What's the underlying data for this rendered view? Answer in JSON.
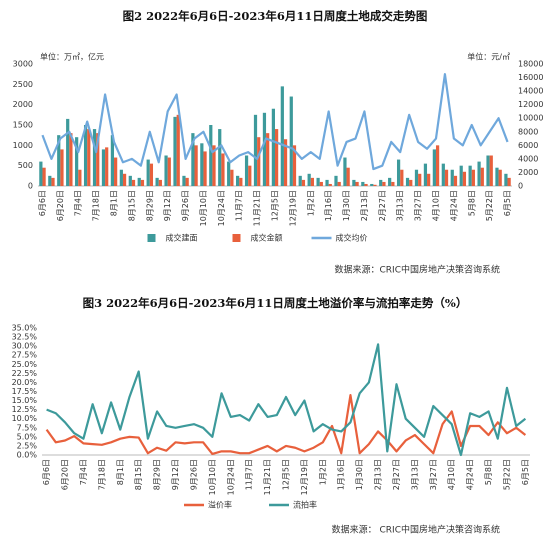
{
  "chart_data": [
    {
      "type": "combo",
      "title": "图2  2022年6月6日-2023年6月11日周度土地成交走势图",
      "y_label": "单位：万㎡，亿元",
      "y2_label": "单位：元/㎡",
      "source": "数据来源：CRIC中国房地产决策咨询系统",
      "categories": [
        "6月6日",
        null,
        "6月20日",
        null,
        "7月4日",
        null,
        "7月18日",
        null,
        "8月1日",
        null,
        "8月15日",
        null,
        "8月29日",
        null,
        "9月12日",
        null,
        "9月26日",
        null,
        "10月10日",
        null,
        "10月24日",
        null,
        "11月7日",
        null,
        "11月21日",
        null,
        "12月5日",
        null,
        "12月19日",
        null,
        "1月2日",
        null,
        "1月16日",
        null,
        "1月30日",
        null,
        "2月13日",
        null,
        "2月27日",
        null,
        "3月13日",
        null,
        "3月27日",
        null,
        "4月10日",
        null,
        "4月24日",
        null,
        "5月8日",
        null,
        "5月22日",
        null,
        "6月5日"
      ],
      "ylim": [
        0,
        3000
      ],
      "yticks": [
        0,
        500,
        1000,
        1500,
        2000,
        2500,
        3000
      ],
      "y2lim": [
        0,
        18000
      ],
      "y2ticks": [
        0,
        2000,
        4000,
        6000,
        8000,
        10000,
        12000,
        14000,
        16000,
        18000
      ],
      "grid": false,
      "series": [
        {
          "name": "成交建面",
          "type": "bar",
          "color": "#3d9a9b",
          "values": [
            600,
            250,
            1250,
            1650,
            1200,
            1500,
            1400,
            900,
            1250,
            400,
            250,
            200,
            650,
            200,
            750,
            1700,
            250,
            1300,
            1050,
            1500,
            1400,
            600,
            250,
            750,
            1750,
            1800,
            1900,
            2450,
            2200,
            250,
            300,
            200,
            150,
            250,
            700,
            150,
            100,
            50,
            150,
            200,
            650,
            200,
            400,
            550,
            900,
            550,
            400,
            500,
            500,
            600,
            750,
            450,
            300
          ]
        },
        {
          "name": "成交金额",
          "type": "bar",
          "color": "#e8603c",
          "values": [
            450,
            200,
            900,
            1300,
            400,
            1400,
            1300,
            950,
            700,
            300,
            150,
            150,
            550,
            150,
            700,
            1750,
            200,
            1000,
            850,
            1000,
            800,
            400,
            200,
            500,
            1200,
            1300,
            1400,
            1150,
            1000,
            150,
            200,
            100,
            50,
            100,
            450,
            100,
            50,
            30,
            100,
            100,
            400,
            150,
            300,
            300,
            1000,
            400,
            250,
            350,
            400,
            450,
            750,
            400,
            200
          ]
        },
        {
          "name": "成交均价",
          "type": "line",
          "axis": "y2",
          "color": "#6fa8dc",
          "values": [
            7500,
            4000,
            7000,
            8000,
            5000,
            9500,
            5000,
            13500,
            6500,
            3500,
            4000,
            3000,
            8000,
            3500,
            11000,
            13500,
            4000,
            7000,
            8000,
            5000,
            6000,
            3500,
            4500,
            5000,
            4000,
            7000,
            6500,
            6000,
            5500,
            4000,
            5000,
            4000,
            11000,
            3000,
            6500,
            7000,
            11000,
            2500,
            3000,
            6500,
            5000,
            10500,
            6500,
            5500,
            7000,
            16500,
            7000,
            6000,
            9000,
            6000,
            8000,
            10000,
            6500
          ]
        }
      ]
    },
    {
      "type": "line",
      "title": "图3  2022年6月6日-2023年6月11日周度土地溢价率与流拍率走势（%）",
      "source": "数据来源：  CRIC中国房地产决策咨询系统",
      "categories": [
        "6月6日",
        null,
        "6月20日",
        null,
        "7月4日",
        null,
        "7月18日",
        null,
        "8月1日",
        null,
        "8月15日",
        null,
        "8月29日",
        null,
        "9月12日",
        null,
        "9月26日",
        null,
        "10月10日",
        null,
        "10月24日",
        null,
        "11月7日",
        null,
        "11月21日",
        null,
        "12月5日",
        null,
        "12月19日",
        null,
        "1月2日",
        null,
        "1月16日",
        null,
        "1月30日",
        null,
        "2月13日",
        null,
        "2月27日",
        null,
        "3月13日",
        null,
        "3月27日",
        null,
        "4月10日",
        null,
        "4月24日",
        null,
        "5月8日",
        null,
        "5月22日",
        null,
        "6月5日"
      ],
      "ylim": [
        0,
        35
      ],
      "yticks": [
        {
          "value": 0,
          "label": "0.0%"
        },
        {
          "value": 2.5,
          "label": "2.5%"
        },
        {
          "value": 5,
          "label": "5.0%"
        },
        {
          "value": 7.5,
          "label": "7.5%"
        },
        {
          "value": 10,
          "label": "10.0%"
        },
        {
          "value": 12.5,
          "label": "12.5%"
        },
        {
          "value": 15,
          "label": "15.0%"
        },
        {
          "value": 17.5,
          "label": "17.5%"
        },
        {
          "value": 20,
          "label": "20.0%"
        },
        {
          "value": 22.5,
          "label": "22.5%"
        },
        {
          "value": 25,
          "label": "25.0%"
        },
        {
          "value": 27.5,
          "label": "27.5%"
        },
        {
          "value": 30,
          "label": "30.0%"
        },
        {
          "value": 32.5,
          "label": "32.5%"
        },
        {
          "value": 35,
          "label": "35.0%"
        }
      ],
      "grid": false,
      "series": [
        {
          "name": "溢价率",
          "type": "line",
          "color": "#e8603c",
          "values": [
            7,
            3.5,
            4,
            5.2,
            3.2,
            3,
            2.8,
            3.5,
            4.5,
            5,
            4.8,
            0.5,
            2,
            1.2,
            3.5,
            3.2,
            3.5,
            3.5,
            0.3,
            1,
            1,
            0.5,
            0.5,
            1.5,
            2.5,
            1,
            2.5,
            2,
            1,
            2,
            3.5,
            8,
            0.5,
            16.5,
            0.5,
            3,
            6.5,
            4,
            1,
            4,
            5.5,
            3,
            0.5,
            8.5,
            12,
            2.5,
            8,
            8,
            5.5,
            9,
            6,
            7.5,
            5.5
          ]
        },
        {
          "name": "流拍率",
          "type": "line",
          "color": "#3d9a9b",
          "values": [
            12.5,
            11.5,
            9,
            6,
            4.5,
            14,
            6,
            14.5,
            7,
            16,
            23,
            4.5,
            12,
            8,
            7.5,
            8,
            8.5,
            7.5,
            5,
            17,
            10.5,
            11,
            9.5,
            14,
            10.5,
            11,
            16,
            11,
            15,
            6.5,
            8.5,
            7,
            6.5,
            9,
            17,
            20,
            30.5,
            1,
            19.5,
            10,
            7.5,
            5,
            13.5,
            11,
            8.5,
            0,
            11.5,
            10.5,
            12,
            4.5,
            18.5,
            8,
            10
          ]
        }
      ]
    }
  ]
}
